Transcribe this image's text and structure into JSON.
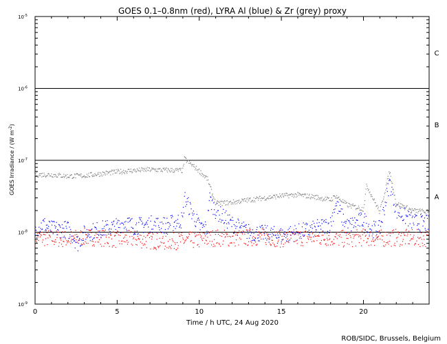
{
  "chart_data": {
    "type": "scatter",
    "title": "GOES 0.1–0.8nm (red), LYRA Al (blue) & Zr (grey) proxy",
    "xlabel": "Time / h UTC, 24 Aug 2020",
    "ylabel": "GOES Irradiance / (W m",
    "ylabel_sup": "-2",
    "ylabel_close": ")",
    "xlim": [
      0,
      24
    ],
    "ylim": [
      1e-09,
      1e-05
    ],
    "yscale": "log",
    "x_ticks": [
      {
        "value": 0,
        "label": "0"
      },
      {
        "value": 5,
        "label": "5"
      },
      {
        "value": 10,
        "label": "10"
      },
      {
        "value": 15,
        "label": "15"
      },
      {
        "value": 20,
        "label": "20"
      }
    ],
    "y_ticks": [
      {
        "value": 1e-09,
        "base": "10",
        "exp": "-9"
      },
      {
        "value": 1e-08,
        "base": "10",
        "exp": "-8"
      },
      {
        "value": 1e-07,
        "base": "10",
        "exp": "-7"
      },
      {
        "value": 1e-06,
        "base": "10",
        "exp": "-6"
      },
      {
        "value": 1e-05,
        "base": "10",
        "exp": "-5"
      }
    ],
    "flare_class_lines": [
      {
        "value": 1e-08,
        "color": "#000000"
      },
      {
        "value": 1e-07,
        "color": "#000000"
      },
      {
        "value": 1e-06,
        "color": "#000000"
      }
    ],
    "flare_class_labels": [
      {
        "label": "A",
        "value": 3.16e-08
      },
      {
        "label": "B",
        "value": 3.16e-07
      },
      {
        "label": "C",
        "value": 3.16e-06
      }
    ],
    "series": [
      {
        "color": "#ff0000",
        "points": [
          [
            0,
            8.5e-09
          ],
          [
            1,
            8.2e-09
          ],
          [
            2,
            8e-09
          ],
          [
            3,
            8.6e-09
          ],
          [
            4,
            8.4e-09
          ],
          [
            5,
            7.9e-09
          ],
          [
            6,
            8.1e-09
          ],
          [
            7,
            7.6e-09
          ],
          [
            8,
            7.4e-09
          ],
          [
            9,
            7.6e-09
          ],
          [
            10,
            7.8e-09
          ],
          [
            11,
            8.4e-09
          ],
          [
            12,
            8.2e-09
          ],
          [
            13,
            8.4e-09
          ],
          [
            14,
            8.6e-09
          ],
          [
            15,
            8.1e-09
          ],
          [
            16,
            8.4e-09
          ],
          [
            17,
            8.5e-09
          ],
          [
            18,
            8.3e-09
          ],
          [
            19,
            8e-09
          ],
          [
            20,
            8.5e-09
          ],
          [
            21,
            8.2e-09
          ],
          [
            22,
            8.4e-09
          ],
          [
            23,
            8.3e-09
          ],
          [
            24,
            8.2e-09
          ]
        ]
      },
      {
        "color": "#0000ff",
        "points": [
          [
            0,
            1.05e-08
          ],
          [
            0.5,
            1.3e-08
          ],
          [
            1,
            1.1e-08
          ],
          [
            2,
            1.1e-08
          ],
          [
            2.6,
            7e-09
          ],
          [
            3,
            9.5e-09
          ],
          [
            4,
            1.1e-08
          ],
          [
            5,
            1.2e-08
          ],
          [
            5.5,
            1.4e-08
          ],
          [
            6,
            1.2e-08
          ],
          [
            7,
            1.3e-08
          ],
          [
            8,
            1.25e-08
          ],
          [
            9,
            1.5e-08
          ],
          [
            9.1,
            3e-08
          ],
          [
            10,
            1.2e-08
          ],
          [
            10.5,
            1.1e-08
          ],
          [
            10.6,
            3e-08
          ],
          [
            11,
            2e-08
          ],
          [
            11.5,
            1.6e-08
          ],
          [
            12,
            1.3e-08
          ],
          [
            13,
            1e-08
          ],
          [
            14,
            9.5e-09
          ],
          [
            15,
            9e-09
          ],
          [
            16,
            1e-08
          ],
          [
            17,
            1.1e-08
          ],
          [
            18,
            1.3e-08
          ],
          [
            18.3,
            2.5e-08
          ],
          [
            19,
            1.2e-08
          ],
          [
            20,
            1.5e-08
          ],
          [
            20.5,
            1.1e-08
          ],
          [
            21,
            1.1e-08
          ],
          [
            21.6,
            5e-08
          ],
          [
            22,
            2e-08
          ],
          [
            23,
            1.4e-08
          ],
          [
            24,
            1.3e-08
          ]
        ]
      },
      {
        "color": "#808080",
        "points": [
          [
            0,
            6.3e-08
          ],
          [
            1,
            6.3e-08
          ],
          [
            2,
            6e-08
          ],
          [
            3,
            6.1e-08
          ],
          [
            4,
            6.5e-08
          ],
          [
            5,
            6.9e-08
          ],
          [
            6,
            7.2e-08
          ],
          [
            7,
            7.4e-08
          ],
          [
            8,
            7.3e-08
          ],
          [
            9,
            7.2e-08
          ],
          [
            9.1,
            1.05e-07
          ],
          [
            10,
            7.1e-08
          ],
          [
            10.5,
            5.5e-08
          ],
          [
            11,
            2.5e-08
          ],
          [
            12,
            2.6e-08
          ],
          [
            13,
            2.8e-08
          ],
          [
            14,
            3e-08
          ],
          [
            15,
            3.2e-08
          ],
          [
            16,
            3.3e-08
          ],
          [
            17,
            3.1e-08
          ],
          [
            18,
            2.8e-08
          ],
          [
            18.3,
            3.2e-08
          ],
          [
            19,
            2.4e-08
          ],
          [
            20,
            2.1e-08
          ],
          [
            20.2,
            4.5e-08
          ],
          [
            21,
            1.9e-08
          ],
          [
            21.6,
            7e-08
          ],
          [
            22,
            2.5e-08
          ],
          [
            23,
            2e-08
          ],
          [
            24,
            1.9e-08
          ]
        ]
      }
    ]
  },
  "credit": "ROB/SIDC, Brussels, Belgium"
}
